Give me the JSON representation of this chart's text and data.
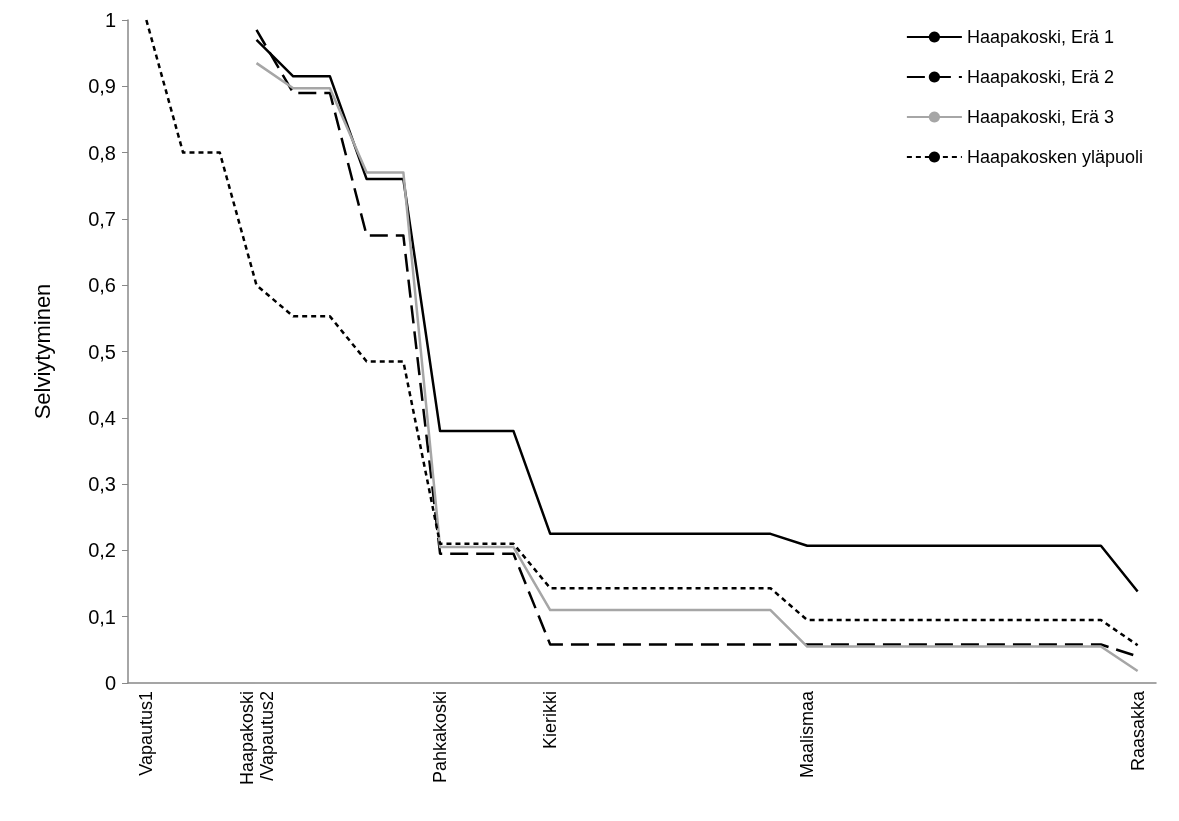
{
  "chart_data": {
    "type": "line",
    "ylabel": "Selviytyminen",
    "categories": [
      "Vapautus1",
      null,
      null,
      "Haapakoski\n/Vapautus2",
      null,
      null,
      null,
      null,
      "Pahkakoski",
      null,
      null,
      "Kierikki",
      null,
      null,
      null,
      null,
      null,
      null,
      "Maalismaa",
      null,
      null,
      null,
      null,
      null,
      null,
      null,
      null,
      "Raasakka"
    ],
    "series": [
      {
        "name": "Haapakoski, Erä 1",
        "color": "#000000",
        "line_style": "solid",
        "values": [
          null,
          null,
          null,
          0.97,
          0.915,
          0.915,
          0.76,
          0.76,
          0.38,
          0.38,
          0.38,
          0.225,
          0.225,
          0.225,
          0.225,
          0.225,
          0.225,
          0.225,
          0.207,
          0.207,
          0.207,
          0.207,
          0.207,
          0.207,
          0.207,
          0.207,
          0.207,
          0.138
        ]
      },
      {
        "name": "Haapakoski, Erä 2",
        "color": "#000000",
        "line_style": "dashed",
        "values": [
          null,
          null,
          null,
          0.985,
          0.89,
          0.89,
          0.675,
          0.675,
          0.195,
          0.195,
          0.195,
          0.058,
          0.058,
          0.058,
          0.058,
          0.058,
          0.058,
          0.058,
          0.058,
          0.058,
          0.058,
          0.058,
          0.058,
          0.058,
          0.058,
          0.058,
          0.058,
          0.04
        ]
      },
      {
        "name": "Haapakoski, Erä 3",
        "color": "#a6a6a6",
        "line_style": "solid",
        "values": [
          null,
          null,
          null,
          0.935,
          0.897,
          0.897,
          0.77,
          0.77,
          0.205,
          0.205,
          0.205,
          0.11,
          0.11,
          0.11,
          0.11,
          0.11,
          0.11,
          0.11,
          0.055,
          0.055,
          0.055,
          0.055,
          0.055,
          0.055,
          0.055,
          0.055,
          0.055,
          0.018
        ]
      },
      {
        "name": "Haapakosken yläpuoli",
        "color": "#000000",
        "line_style": "dotted",
        "values": [
          1.0,
          0.8,
          0.8,
          0.6,
          0.553,
          0.553,
          0.485,
          0.485,
          0.21,
          0.21,
          0.21,
          0.143,
          0.143,
          0.143,
          0.143,
          0.143,
          0.143,
          0.143,
          0.095,
          0.095,
          0.095,
          0.095,
          0.095,
          0.095,
          0.095,
          0.095,
          0.095,
          0.057
        ]
      }
    ],
    "ylim": [
      0,
      1
    ],
    "yticks": [
      0,
      {
        "value": 0.1,
        "label": "0,1"
      },
      {
        "value": 0.2,
        "label": "0,2"
      },
      {
        "value": 0.3,
        "label": "0,3"
      },
      {
        "value": 0.4,
        "label": "0,4"
      },
      {
        "value": 0.5,
        "label": "0,5"
      },
      {
        "value": 0.6,
        "label": "0,6"
      },
      {
        "value": 0.7,
        "label": "0,7"
      },
      {
        "value": 0.8,
        "label": "0,8"
      },
      {
        "value": 0.9,
        "label": "0,9"
      },
      1
    ],
    "grid": false,
    "legend": "top right",
    "marker": "none"
  }
}
